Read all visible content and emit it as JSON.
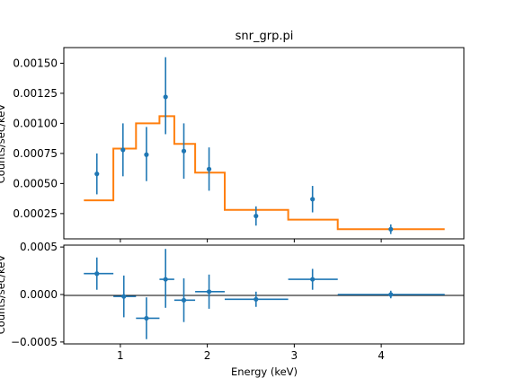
{
  "chart_data": {
    "type": "line",
    "title": "snr_grp.pi",
    "xlabel": "Energy (keV)",
    "xlim": [
      0.35,
      4.95
    ],
    "xticks": [
      1,
      2,
      3,
      4
    ],
    "xtick_labels": [
      "1",
      "2",
      "3",
      "4"
    ],
    "colors": {
      "data": "#1f77b4",
      "model": "#ff7f0e",
      "zero": "#000000"
    },
    "top_panel": {
      "ylabel": "Counts/sec/keV",
      "ylim": [
        4e-05,
        0.00163
      ],
      "yticks": [
        0.00025,
        0.0005,
        0.00075,
        0.001,
        0.00125,
        0.0015
      ],
      "ytick_labels": [
        "0.00025",
        "0.00050",
        "0.00075",
        "0.00100",
        "0.00125",
        "0.00150"
      ],
      "series": [
        {
          "kind": "points",
          "x": [
            0.73,
            1.03,
            1.3,
            1.52,
            1.73,
            2.02,
            2.56,
            3.21,
            4.11
          ],
          "y": [
            0.00058,
            0.00078,
            0.00074,
            0.00122,
            0.00077,
            0.00062,
            0.00023,
            0.00037,
            0.00012
          ],
          "yerr_low": [
            0.00041,
            0.00056,
            0.00052,
            0.00091,
            0.00054,
            0.00044,
            0.00015,
            0.00026,
            8e-05
          ],
          "yerr_high": [
            0.00075,
            0.001,
            0.00097,
            0.00155,
            0.001,
            0.0008,
            0.00031,
            0.00048,
            0.00016
          ]
        },
        {
          "kind": "step-model",
          "bins": [
            {
              "x0": 0.58,
              "x1": 0.92,
              "y": 0.00036
            },
            {
              "x0": 0.92,
              "x1": 1.18,
              "y": 0.00079
            },
            {
              "x0": 1.18,
              "x1": 1.45,
              "y": 0.001
            },
            {
              "x0": 1.45,
              "x1": 1.62,
              "y": 0.00106
            },
            {
              "x0": 1.62,
              "x1": 1.86,
              "y": 0.00083
            },
            {
              "x0": 1.86,
              "x1": 2.2,
              "y": 0.00059
            },
            {
              "x0": 2.2,
              "x1": 2.93,
              "y": 0.00028
            },
            {
              "x0": 2.93,
              "x1": 3.5,
              "y": 0.0002
            },
            {
              "x0": 3.5,
              "x1": 4.73,
              "y": 0.00012
            }
          ]
        }
      ]
    },
    "bottom_panel": {
      "ylabel": "Counts/sec/keV",
      "ylim": [
        -0.00052,
        0.00052
      ],
      "yticks": [
        -0.0005,
        0,
        0.0005
      ],
      "ytick_labels": [
        "−0.0005",
        "0.0000",
        "0.0005"
      ],
      "series": [
        {
          "kind": "residuals",
          "x": [
            0.73,
            1.04,
            1.3,
            1.52,
            1.73,
            2.02,
            2.56,
            3.21,
            4.11
          ],
          "xerr_low": [
            0.58,
            0.92,
            1.18,
            1.45,
            1.62,
            1.86,
            2.2,
            2.93,
            3.5
          ],
          "xerr_high": [
            0.92,
            1.18,
            1.45,
            1.62,
            1.86,
            2.2,
            2.93,
            3.5,
            4.73
          ],
          "y": [
            0.00022,
            -2e-05,
            -0.00025,
            0.00016,
            -6e-05,
            3e-05,
            -5e-05,
            0.00016,
            0.0
          ],
          "yerr_low": [
            5e-05,
            -0.00024,
            -0.00047,
            -0.00014,
            -0.00029,
            -0.00015,
            -0.00013,
            5e-05,
            -4e-05
          ],
          "yerr_high": [
            0.00039,
            0.0002,
            -3e-05,
            0.00048,
            0.00017,
            0.00021,
            3e-05,
            0.00027,
            4e-05
          ]
        }
      ]
    }
  }
}
